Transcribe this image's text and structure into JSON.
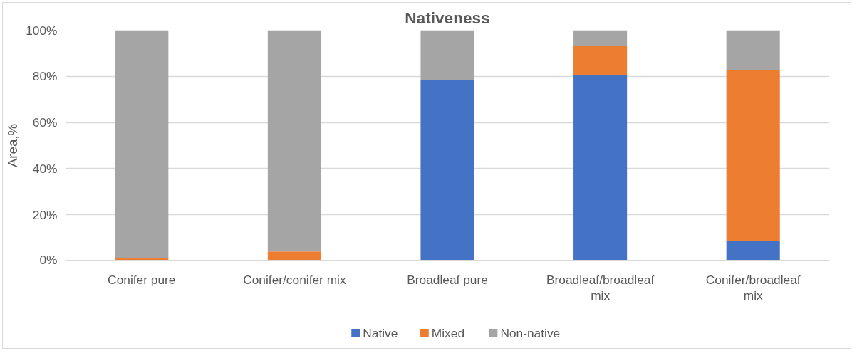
{
  "chart_data": {
    "type": "bar",
    "title": "Nativeness",
    "ylabel": "Area,%",
    "stacked": true,
    "categories": [
      "Conifer pure",
      "Conifer/conifer mix",
      "Broadleaf pure",
      "Broadleaf/broadleaf mix",
      "Conifer/broadleaf mix"
    ],
    "series": [
      {
        "name": "Native",
        "color": "#4472c4",
        "values": [
          0.5,
          0.5,
          78.3,
          80.7,
          8.8
        ]
      },
      {
        "name": "Mixed",
        "color": "#ed7d31",
        "values": [
          0.7,
          3.6,
          0,
          12.5,
          74
        ]
      },
      {
        "name": "Non-native",
        "color": "#a5a5a5",
        "values": [
          98.8,
          95.9,
          21.7,
          6.8,
          17.2
        ]
      }
    ],
    "ylim": [
      0,
      100
    ],
    "yticks": [
      {
        "value": 0,
        "label": "0%"
      },
      {
        "value": 20,
        "label": "20%"
      },
      {
        "value": 40,
        "label": "40%"
      },
      {
        "value": 60,
        "label": "60%"
      },
      {
        "value": 80,
        "label": "80%"
      },
      {
        "value": 100,
        "label": "100%"
      }
    ],
    "grid": "y",
    "legend": "bottom"
  }
}
